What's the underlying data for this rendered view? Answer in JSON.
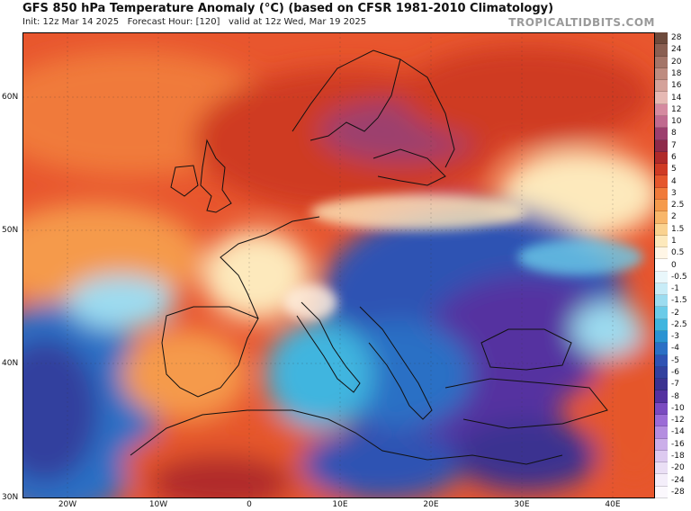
{
  "header": {
    "title": "GFS 850 hPa Temperature Anomaly (°C) (based on CFSR 1981-2010 Climatology)",
    "subtitle": "Init: 12z Mar 14 2025   Forecast Hour: [120]   valid at 12z Wed, Mar 19 2025",
    "brand": "TROPICALTIDBITS.COM"
  },
  "axes": {
    "lat_labels": [
      "60N",
      "50N",
      "40N",
      "30N"
    ],
    "lon_labels": [
      "20W",
      "10W",
      "0",
      "10E",
      "20E",
      "30E",
      "40E"
    ]
  },
  "colorbar": {
    "labels": [
      "28",
      "24",
      "20",
      "18",
      "16",
      "14",
      "12",
      "10",
      "8",
      "7",
      "6",
      "5",
      "4",
      "3",
      "2.5",
      "2",
      "1.5",
      "1",
      "0.5",
      "0",
      "-0.5",
      "-1",
      "-1.5",
      "-2",
      "-2.5",
      "-3",
      "-4",
      "-5",
      "-6",
      "-7",
      "-8",
      "-10",
      "-12",
      "-14",
      "-16",
      "-18",
      "-20",
      "-24",
      "-28"
    ],
    "colors": [
      "#6e4a3c",
      "#8a5f52",
      "#a47568",
      "#be8c80",
      "#d4a29a",
      "#e6b9b4",
      "#d58aa0",
      "#c06a8f",
      "#9c3f6e",
      "#8e2a4a",
      "#b02a2a",
      "#cf3a24",
      "#e5562c",
      "#f07a3a",
      "#f59a4c",
      "#f8b66a",
      "#fad290",
      "#fde9bc",
      "#fff6e6",
      "#ffffff",
      "#e9f7fb",
      "#c8ecf7",
      "#9cdcf0",
      "#6bcbe8",
      "#3fb5df",
      "#2a93d2",
      "#2b6fc5",
      "#2f52b3",
      "#32409e",
      "#3b3290",
      "#5431a0",
      "#7a4ac0",
      "#9b6bd6",
      "#b48de0",
      "#cbaee9",
      "#ddcaf0",
      "#eadff5",
      "#f4eefa",
      "#fbf8fd"
    ]
  }
}
